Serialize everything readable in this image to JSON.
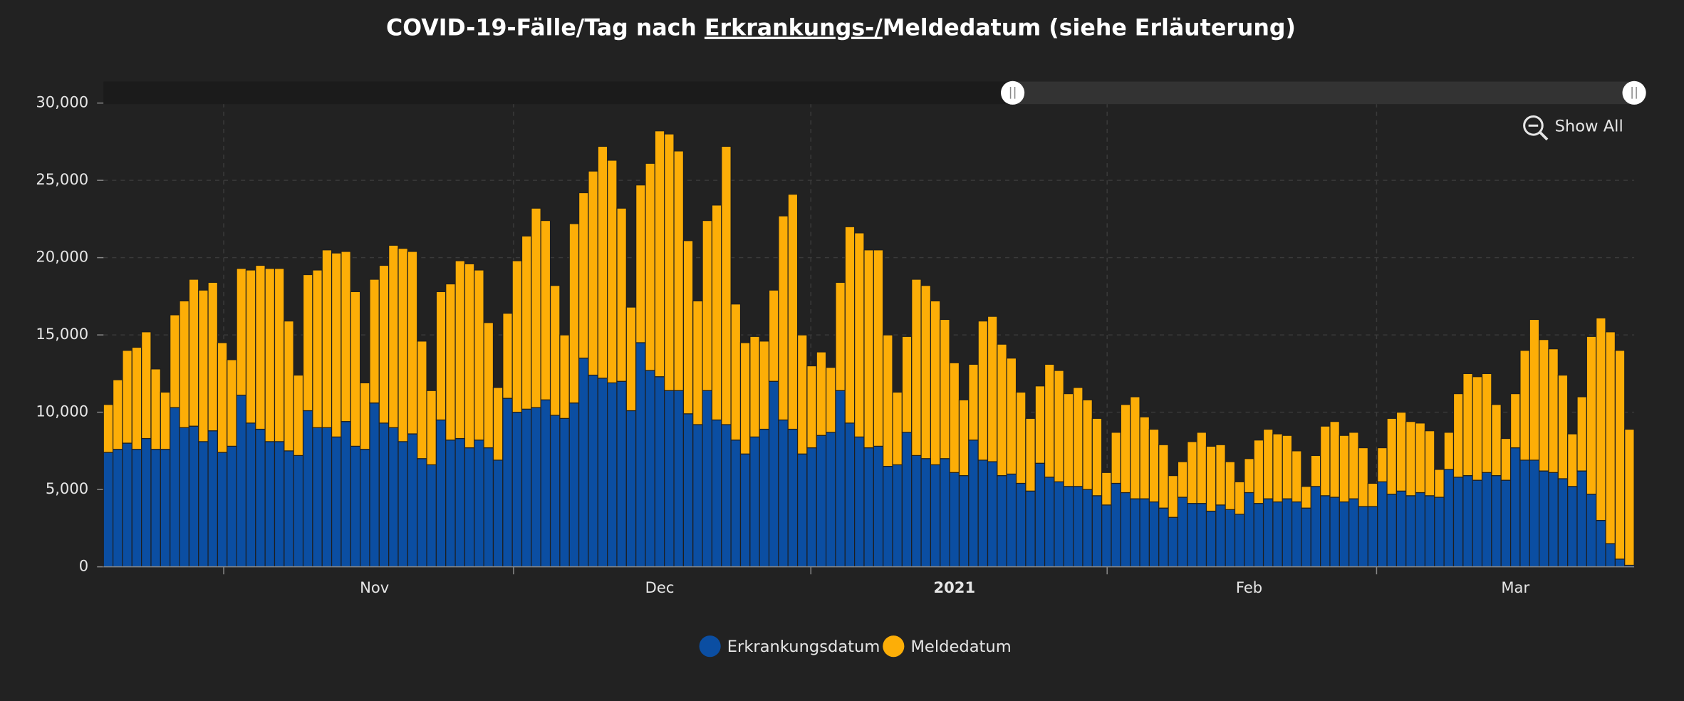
{
  "chart_data": {
    "type": "stacked-bar",
    "title_parts": [
      "COVID-19-Fälle/Tag nach ",
      "Erkrankungs-/",
      "Meldedatum (siehe Erläuterung)"
    ],
    "show_all": "Show All",
    "categories": [
      null,
      null,
      null,
      null,
      null,
      null,
      null,
      null,
      null,
      null,
      null,
      null,
      null,
      null,
      null,
      null,
      null,
      null,
      null,
      null,
      null,
      null,
      null,
      null,
      null,
      null,
      null,
      null,
      "Nov",
      null,
      null,
      null,
      null,
      null,
      null,
      null,
      null,
      null,
      null,
      null,
      null,
      null,
      null,
      null,
      null,
      null,
      null,
      null,
      null,
      null,
      null,
      null,
      null,
      null,
      null,
      null,
      null,
      null,
      "Dec",
      null,
      null,
      null,
      null,
      null,
      null,
      null,
      null,
      null,
      null,
      null,
      null,
      null,
      null,
      null,
      null,
      null,
      null,
      null,
      null,
      null,
      null,
      null,
      null,
      null,
      null,
      null,
      null,
      null,
      null,
      "2021",
      null,
      null,
      null,
      null,
      null,
      null,
      null,
      null,
      null,
      null,
      null,
      null,
      null,
      null,
      null,
      null,
      null,
      null,
      null,
      null,
      null,
      null,
      null,
      null,
      null,
      null,
      null,
      null,
      null,
      null,
      "Feb",
      null,
      null,
      null,
      null,
      null,
      null,
      null,
      null,
      null,
      null,
      null,
      null,
      null,
      null,
      null,
      null,
      null,
      null,
      null,
      null,
      null,
      null,
      null,
      null,
      null,
      null,
      null,
      "Mar",
      null,
      null,
      null,
      null,
      null,
      null,
      null,
      null,
      null,
      null,
      null,
      null
    ],
    "series": [
      {
        "name": "Erkrankungsdatum",
        "color": "#0b4ea2",
        "values": [
          7400,
          7600,
          8000,
          7600,
          8300,
          7600,
          7600,
          10300,
          9000,
          9100,
          8100,
          8800,
          7400,
          7800,
          11100,
          9300,
          8900,
          8100,
          8100,
          7500,
          7200,
          10100,
          9000,
          9000,
          8400,
          9400,
          7800,
          7600,
          10600,
          9300,
          9000,
          8100,
          8600,
          7000,
          6600,
          9500,
          8200,
          8300,
          7700,
          8200,
          7700,
          6900,
          10900,
          10000,
          10200,
          10300,
          10800,
          9800,
          9600,
          10600,
          13500,
          12400,
          12200,
          11900,
          12000,
          10100,
          14500,
          12700,
          12300,
          11400,
          11400,
          9900,
          9200,
          11400,
          9500,
          9200,
          8200,
          7300,
          8400,
          8900,
          12000,
          9500,
          8900,
          7300,
          7700,
          8500,
          8700,
          11400,
          9300,
          8400,
          7700,
          7800,
          6500,
          6600,
          8700,
          7200,
          7000,
          6600,
          7000,
          6100,
          5900,
          8200,
          6900,
          6800,
          5900,
          6000,
          5400,
          4900,
          6700,
          5800,
          5500,
          5200,
          5200,
          5000,
          4600,
          4000,
          5400,
          4800,
          4400,
          4400,
          4200,
          3800,
          3200,
          4500,
          4100,
          4100,
          3600,
          4000,
          3700,
          3400,
          4800,
          4100,
          4400,
          4200,
          4400,
          4200,
          3800,
          5200,
          4600,
          4500,
          4200,
          4400,
          3900,
          3900,
          5500,
          4700,
          4900,
          4600,
          4800,
          4600,
          4500,
          6300,
          5800,
          5900,
          5600,
          6100,
          5900,
          5600,
          7700,
          6900,
          6900,
          6200,
          6100,
          5700,
          5200,
          6200,
          4700,
          3000,
          1500,
          500,
          100
        ]
      },
      {
        "name": "Meldedatum",
        "color": "#fdae07",
        "values": [
          3100,
          4500,
          6000,
          6600,
          6900,
          5200,
          3700,
          6000,
          8200,
          9500,
          9800,
          9600,
          7100,
          5600,
          8200,
          9900,
          10600,
          11200,
          11200,
          8400,
          5200,
          8800,
          10200,
          11500,
          11900,
          11000,
          10000,
          4300,
          8000,
          10200,
          11800,
          12500,
          11800,
          7600,
          4800,
          8300,
          10100,
          11500,
          11900,
          11000,
          8100,
          4700,
          5500,
          9800,
          11200,
          12900,
          11600,
          8400,
          5400,
          11600,
          10700,
          13200,
          15000,
          14400,
          11200,
          6700,
          10200,
          13400,
          15900,
          16600,
          15500,
          11200,
          8000,
          11000,
          13900,
          18000,
          8800,
          7200,
          6500,
          5700,
          5900,
          13200,
          15200,
          7700,
          5300,
          5400,
          4200,
          7000,
          12700,
          13200,
          12800,
          12700,
          8500,
          4700,
          6200,
          11400,
          11200,
          10600,
          9000,
          7100,
          4900,
          4900,
          9000,
          9400,
          8500,
          7500,
          5900,
          4700,
          5000,
          7300,
          7200,
          6000,
          6400,
          5800,
          5000,
          2100,
          3300,
          5700,
          6600,
          5300,
          4700,
          4100,
          2700,
          2300,
          4000,
          4600,
          4200,
          3900,
          3100,
          2100,
          2200,
          4100,
          4500,
          4400,
          4100,
          3300,
          1400,
          2000,
          4500,
          4900,
          4300,
          4300,
          3800,
          1500,
          2200,
          4900,
          5100,
          4800,
          4500,
          4200,
          1800,
          2400,
          5400,
          6600,
          6700,
          6400,
          4600,
          2700,
          3500,
          7100,
          9100,
          8500,
          8000,
          6700,
          3400,
          4800,
          10200,
          13100,
          13700,
          13500,
          8800
        ]
      }
    ],
    "ylim": [
      0,
      30000
    ],
    "yticks": [
      0,
      {
        "value": 5000,
        "label": "5,000"
      },
      {
        "value": 10000,
        "label": "10,000"
      },
      {
        "value": 15000,
        "label": "15,000"
      },
      {
        "value": 20000,
        "label": "20,000"
      },
      {
        "value": 25000,
        "label": "25,000"
      },
      {
        "value": 30000,
        "label": "30,000"
      }
    ],
    "grid": true
  }
}
